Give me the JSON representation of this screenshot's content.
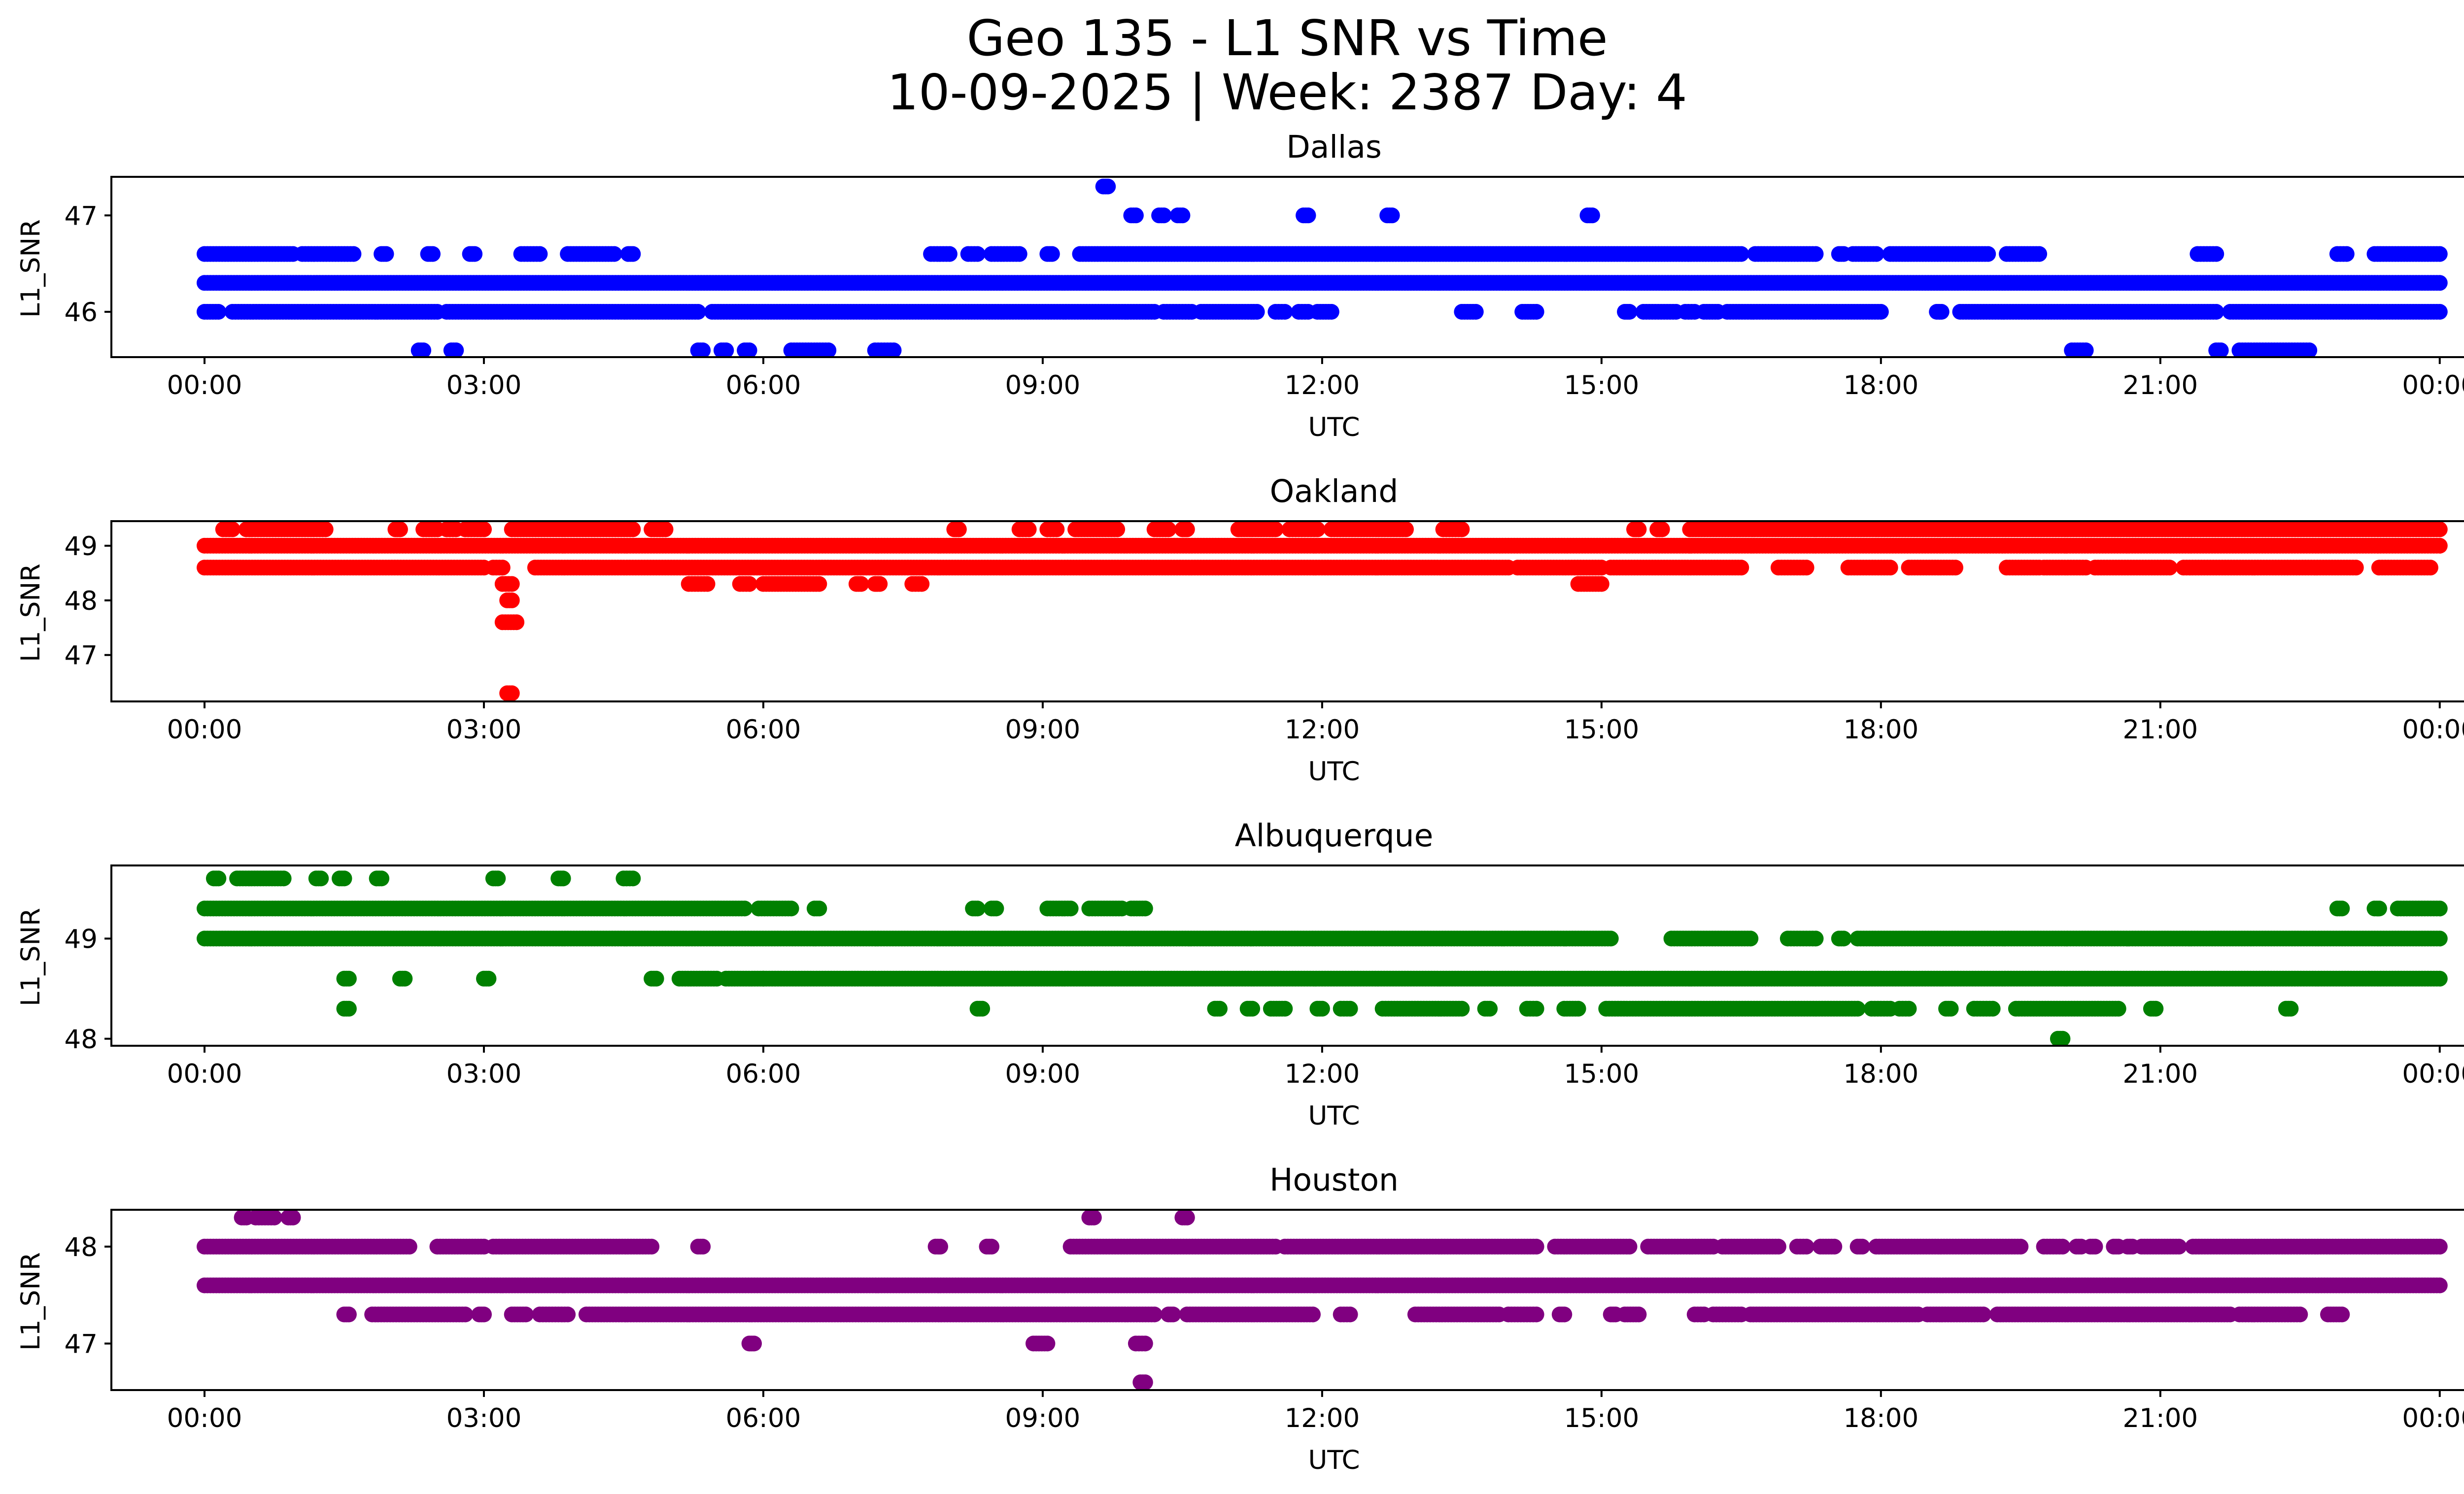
{
  "figure": {
    "title_line1": "Geo 135 - L1 SNR vs Time",
    "title_line2": "10-09-2025 | Week: 2387 Day: 4"
  },
  "chart_data": [
    {
      "type": "scatter",
      "title": "Dallas",
      "xlabel": "UTC",
      "ylabel": "L1_SNR",
      "color": "#0000ff",
      "xlim_hours": [
        -1.0,
        25.25
      ],
      "ylim": [
        45.53,
        47.4
      ],
      "xticks": [
        "00:00",
        "03:00",
        "06:00",
        "09:00",
        "12:00",
        "15:00",
        "18:00",
        "21:00",
        "00:00"
      ],
      "yticks": [
        46,
        47
      ],
      "levels": [
        {
          "y": 46.3,
          "ranges": [
            [
              0.0,
              24.0
            ]
          ]
        },
        {
          "y": 46.0,
          "ranges": [
            [
              0.0,
              0.15
            ],
            [
              0.3,
              2.5
            ],
            [
              2.6,
              5.3
            ],
            [
              5.45,
              10.2
            ],
            [
              10.3,
              10.6
            ],
            [
              10.7,
              11.3
            ],
            [
              11.5,
              11.6
            ],
            [
              11.75,
              11.85
            ],
            [
              11.95,
              12.1
            ],
            [
              13.5,
              13.65
            ],
            [
              14.15,
              14.3
            ],
            [
              15.25,
              15.3
            ],
            [
              15.45,
              15.8
            ],
            [
              15.9,
              16.0
            ],
            [
              16.1,
              16.25
            ],
            [
              16.35,
              18.0
            ],
            [
              18.6,
              18.65
            ],
            [
              18.85,
              21.6
            ],
            [
              21.75,
              24.0
            ]
          ]
        },
        {
          "y": 46.6,
          "ranges": [
            [
              0.0,
              0.95
            ],
            [
              1.05,
              1.6
            ],
            [
              1.9,
              1.95
            ],
            [
              2.4,
              2.45
            ],
            [
              2.85,
              2.9
            ],
            [
              3.4,
              3.6
            ],
            [
              3.9,
              4.4
            ],
            [
              4.55,
              4.6
            ],
            [
              7.8,
              8.0
            ],
            [
              8.2,
              8.3
            ],
            [
              8.45,
              8.75
            ],
            [
              9.05,
              9.1
            ],
            [
              9.4,
              16.5
            ],
            [
              16.65,
              17.3
            ],
            [
              17.55,
              17.6
            ],
            [
              17.7,
              17.95
            ],
            [
              18.1,
              19.15
            ],
            [
              19.35,
              19.7
            ],
            [
              21.4,
              21.6
            ],
            [
              22.9,
              23.0
            ],
            [
              23.3,
              24.0
            ]
          ]
        },
        {
          "y": 45.6,
          "ranges": [
            [
              2.3,
              2.35
            ],
            [
              2.65,
              2.7
            ],
            [
              5.3,
              5.35
            ],
            [
              5.55,
              5.6
            ],
            [
              5.8,
              5.85
            ],
            [
              6.3,
              6.7
            ],
            [
              7.2,
              7.4
            ],
            [
              20.05,
              20.2
            ],
            [
              21.6,
              21.65
            ],
            [
              21.85,
              22.6
            ]
          ]
        },
        {
          "y": 47.0,
          "ranges": [
            [
              9.95,
              10.0
            ],
            [
              10.25,
              10.3
            ],
            [
              10.45,
              10.5
            ],
            [
              11.8,
              11.85
            ],
            [
              12.7,
              12.75
            ],
            [
              14.85,
              14.9
            ]
          ]
        },
        {
          "y": 47.3,
          "ranges": [
            [
              9.65,
              9.7
            ]
          ]
        }
      ]
    },
    {
      "type": "scatter",
      "title": "Oakland",
      "xlabel": "UTC",
      "ylabel": "L1_SNR",
      "color": "#ff0000",
      "xlim_hours": [
        -1.0,
        25.25
      ],
      "ylim": [
        46.15,
        49.45
      ],
      "xticks": [
        "00:00",
        "03:00",
        "06:00",
        "09:00",
        "12:00",
        "15:00",
        "18:00",
        "21:00",
        "00:00"
      ],
      "yticks": [
        47,
        48,
        49
      ],
      "levels": [
        {
          "y": 49.0,
          "ranges": [
            [
              0.0,
              24.0
            ]
          ]
        },
        {
          "y": 48.6,
          "ranges": [
            [
              0.0,
              3.0
            ],
            [
              3.1,
              3.2
            ],
            [
              3.55,
              14.0
            ],
            [
              14.1,
              15.0
            ],
            [
              15.1,
              16.5
            ],
            [
              16.9,
              17.2
            ],
            [
              17.65,
              18.1
            ],
            [
              18.3,
              18.8
            ],
            [
              19.35,
              19.7
            ],
            [
              19.75,
              20.2
            ],
            [
              20.3,
              21.1
            ],
            [
              21.25,
              23.1
            ],
            [
              23.35,
              23.9
            ]
          ]
        },
        {
          "y": 49.3,
          "ranges": [
            [
              0.2,
              0.3
            ],
            [
              0.45,
              1.3
            ],
            [
              2.05,
              2.1
            ],
            [
              2.35,
              2.5
            ],
            [
              2.6,
              2.7
            ],
            [
              2.8,
              3.0
            ],
            [
              3.3,
              4.6
            ],
            [
              4.8,
              4.95
            ],
            [
              8.05,
              8.1
            ],
            [
              8.75,
              8.85
            ],
            [
              9.05,
              9.15
            ],
            [
              9.35,
              9.8
            ],
            [
              10.2,
              10.35
            ],
            [
              10.5,
              10.55
            ],
            [
              11.1,
              11.5
            ],
            [
              11.65,
              11.95
            ],
            [
              12.1,
              12.9
            ],
            [
              13.3,
              13.5
            ],
            [
              15.35,
              15.4
            ],
            [
              15.6,
              15.65
            ],
            [
              15.95,
              24.0
            ]
          ]
        },
        {
          "y": 48.3,
          "ranges": [
            [
              3.2,
              3.3
            ],
            [
              5.2,
              5.4
            ],
            [
              5.75,
              5.85
            ],
            [
              6.0,
              6.6
            ],
            [
              7.0,
              7.05
            ],
            [
              7.2,
              7.25
            ],
            [
              7.6,
              7.7
            ],
            [
              14.75,
              15.0
            ]
          ]
        },
        {
          "y": 48.0,
          "ranges": [
            [
              3.25,
              3.3
            ]
          ]
        },
        {
          "y": 47.6,
          "ranges": [
            [
              3.2,
              3.35
            ]
          ]
        },
        {
          "y": 46.3,
          "ranges": [
            [
              3.25,
              3.3
            ]
          ]
        }
      ]
    },
    {
      "type": "scatter",
      "title": "Albuquerque",
      "xlabel": "UTC",
      "ylabel": "L1_SNR",
      "color": "#008000",
      "xlim_hours": [
        -1.0,
        25.25
      ],
      "ylim": [
        47.93,
        49.73
      ],
      "xticks": [
        "00:00",
        "03:00",
        "06:00",
        "09:00",
        "12:00",
        "15:00",
        "18:00",
        "21:00",
        "00:00"
      ],
      "yticks": [
        48,
        49
      ],
      "levels": [
        {
          "y": 49.0,
          "ranges": [
            [
              0.0,
              15.1
            ],
            [
              15.75,
              16.6
            ],
            [
              17.0,
              17.3
            ],
            [
              17.55,
              17.6
            ],
            [
              17.75,
              24.0
            ]
          ]
        },
        {
          "y": 49.3,
          "ranges": [
            [
              0.0,
              5.8
            ],
            [
              5.95,
              6.3
            ],
            [
              6.55,
              6.6
            ],
            [
              8.25,
              8.3
            ],
            [
              8.45,
              8.5
            ],
            [
              9.05,
              9.3
            ],
            [
              9.5,
              9.85
            ],
            [
              9.95,
              10.1
            ],
            [
              22.9,
              22.95
            ],
            [
              23.3,
              23.35
            ],
            [
              23.55,
              24.0
            ]
          ]
        },
        {
          "y": 49.6,
          "ranges": [
            [
              0.1,
              0.15
            ],
            [
              0.35,
              0.85
            ],
            [
              1.2,
              1.25
            ],
            [
              1.45,
              1.5
            ],
            [
              1.85,
              1.9
            ],
            [
              3.1,
              3.15
            ],
            [
              3.8,
              3.85
            ],
            [
              4.5,
              4.6
            ]
          ]
        },
        {
          "y": 48.6,
          "ranges": [
            [
              1.5,
              1.55
            ],
            [
              2.1,
              2.15
            ],
            [
              3.0,
              3.05
            ],
            [
              4.8,
              4.85
            ],
            [
              5.1,
              5.5
            ],
            [
              5.6,
              6.0
            ],
            [
              6.0,
              24.0
            ]
          ]
        },
        {
          "y": 48.3,
          "ranges": [
            [
              1.5,
              1.55
            ],
            [
              8.3,
              8.35
            ],
            [
              10.85,
              10.9
            ],
            [
              11.2,
              11.25
            ],
            [
              11.45,
              11.6
            ],
            [
              11.95,
              12.0
            ],
            [
              12.2,
              12.3
            ],
            [
              12.65,
              13.5
            ],
            [
              13.75,
              13.8
            ],
            [
              14.2,
              14.3
            ],
            [
              14.6,
              14.75
            ],
            [
              15.05,
              17.75
            ],
            [
              17.9,
              18.1
            ],
            [
              18.2,
              18.3
            ],
            [
              18.7,
              18.75
            ],
            [
              19.0,
              19.2
            ],
            [
              19.45,
              20.55
            ],
            [
              20.9,
              20.95
            ],
            [
              22.35,
              22.4
            ]
          ]
        },
        {
          "y": 48.0,
          "ranges": [
            [
              19.9,
              19.95
            ]
          ]
        }
      ]
    },
    {
      "type": "scatter",
      "title": "Houston",
      "xlabel": "UTC",
      "ylabel": "L1_SNR",
      "color": "#800080",
      "xlim_hours": [
        -1.0,
        25.25
      ],
      "ylim": [
        46.52,
        48.38
      ],
      "xticks": [
        "00:00",
        "03:00",
        "06:00",
        "09:00",
        "12:00",
        "15:00",
        "18:00",
        "21:00",
        "00:00"
      ],
      "yticks": [
        47,
        48
      ],
      "levels": [
        {
          "y": 47.6,
          "ranges": [
            [
              0.0,
              24.0
            ]
          ]
        },
        {
          "y": 48.0,
          "ranges": [
            [
              0.0,
              2.2
            ],
            [
              2.5,
              3.0
            ],
            [
              3.1,
              4.8
            ],
            [
              5.3,
              5.35
            ],
            [
              7.85,
              7.9
            ],
            [
              8.4,
              8.45
            ],
            [
              9.3,
              11.5
            ],
            [
              11.6,
              14.3
            ],
            [
              14.5,
              15.3
            ],
            [
              15.5,
              16.2
            ],
            [
              16.3,
              16.9
            ],
            [
              17.1,
              17.2
            ],
            [
              17.35,
              17.5
            ],
            [
              17.75,
              17.8
            ],
            [
              17.95,
              19.5
            ],
            [
              19.75,
              19.95
            ],
            [
              20.1,
              20.15
            ],
            [
              20.25,
              20.3
            ],
            [
              20.5,
              20.55
            ],
            [
              20.65,
              20.7
            ],
            [
              20.8,
              21.2
            ],
            [
              21.35,
              24.0
            ]
          ]
        },
        {
          "y": 47.3,
          "ranges": [
            [
              1.5,
              1.55
            ],
            [
              1.8,
              2.8
            ],
            [
              2.95,
              3.0
            ],
            [
              3.3,
              3.45
            ],
            [
              3.6,
              3.9
            ],
            [
              4.1,
              10.2
            ],
            [
              10.35,
              10.4
            ],
            [
              10.55,
              11.9
            ],
            [
              12.2,
              12.3
            ],
            [
              13.0,
              13.9
            ],
            [
              14.0,
              14.3
            ],
            [
              14.55,
              14.6
            ],
            [
              15.1,
              15.15
            ],
            [
              15.25,
              15.4
            ],
            [
              16.0,
              16.1
            ],
            [
              16.2,
              16.5
            ],
            [
              16.6,
              18.4
            ],
            [
              18.5,
              19.1
            ],
            [
              19.25,
              21.75
            ],
            [
              21.85,
              22.5
            ],
            [
              22.8,
              22.95
            ]
          ]
        },
        {
          "y": 48.3,
          "ranges": [
            [
              0.4,
              0.45
            ],
            [
              0.55,
              0.75
            ],
            [
              0.9,
              0.95
            ],
            [
              9.5,
              9.55
            ],
            [
              10.5,
              10.55
            ]
          ]
        },
        {
          "y": 47.0,
          "ranges": [
            [
              5.85,
              5.9
            ],
            [
              8.9,
              9.05
            ],
            [
              10.0,
              10.1
            ]
          ]
        },
        {
          "y": 46.6,
          "ranges": [
            [
              10.05,
              10.1
            ]
          ]
        }
      ]
    }
  ]
}
